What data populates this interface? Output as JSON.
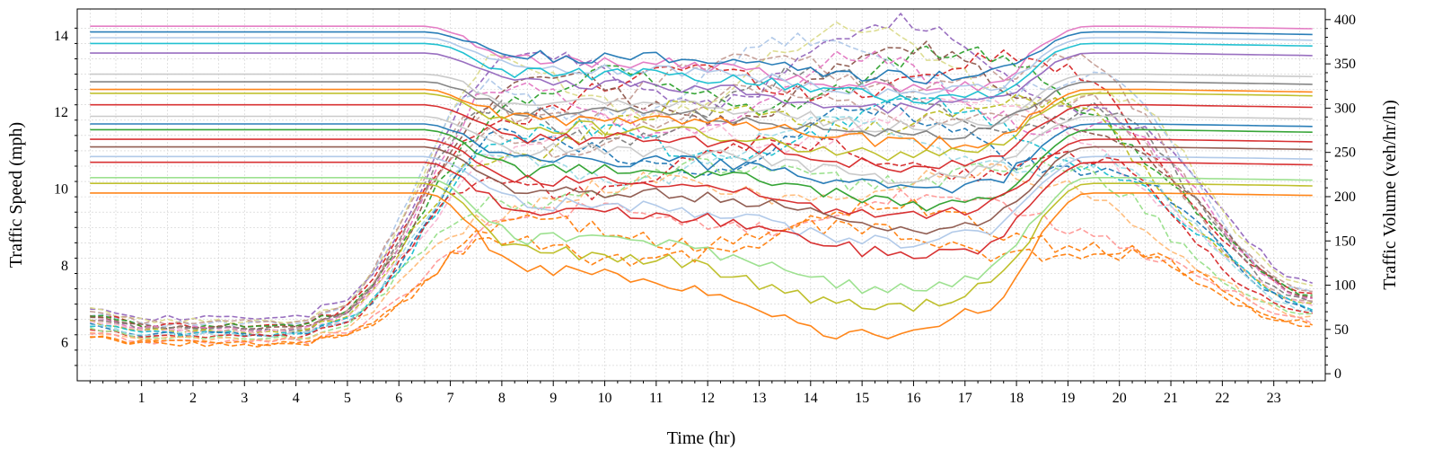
{
  "chart_data": {
    "type": "line",
    "title": "",
    "xlabel": "Time (hr)",
    "ylabel": "Traffic Speed (mph)",
    "y2label": "Traffic Volume (veh/hr/ln)",
    "xlim": [
      -0.25,
      24
    ],
    "ylim": [
      5,
      14.7
    ],
    "y2lim": [
      -8,
      412
    ],
    "xticks": [
      1,
      2,
      3,
      4,
      5,
      6,
      7,
      8,
      9,
      10,
      11,
      12,
      13,
      14,
      15,
      16,
      17,
      18,
      19,
      20,
      21,
      22,
      23
    ],
    "yticks": [
      6,
      8,
      10,
      12,
      14
    ],
    "y2ticks": [
      0,
      50,
      100,
      150,
      200,
      250,
      300,
      350,
      400
    ],
    "grid": true,
    "speed_series_style": "solid",
    "volume_series_style": "dashed",
    "palette": [
      "#1f77b4",
      "#ff7f0e",
      "#2ca02c",
      "#d62728",
      "#9467bd",
      "#8c564b",
      "#e377c2",
      "#7f7f7f",
      "#bcbd22",
      "#17becf",
      "#aec7e8",
      "#ffbb78",
      "#98df8a",
      "#ff9896",
      "#c5b0d5",
      "#c49c94",
      "#f7b6d2",
      "#c7c7c7",
      "#dbdb8d",
      "#9edae5"
    ],
    "speed_series": [
      {
        "free_flow": 14.25,
        "min": 12.6,
        "trough_time": 9.4,
        "color": "#e377c2"
      },
      {
        "free_flow": 14.1,
        "min": 12.9,
        "trough_time": 9.8,
        "color": "#1f77b4"
      },
      {
        "free_flow": 13.95,
        "min": 12.5,
        "trough_time": 9.5,
        "color": "#aec7e8"
      },
      {
        "free_flow": 13.8,
        "min": 12.4,
        "trough_time": 9.6,
        "color": "#17becf"
      },
      {
        "free_flow": 13.55,
        "min": 12.1,
        "trough_time": 9.3,
        "color": "#9467bd"
      },
      {
        "free_flow": 13.0,
        "min": 11.6,
        "trough_time": 9.7,
        "color": "#c7c7c7"
      },
      {
        "free_flow": 12.8,
        "min": 11.4,
        "trough_time": 9.2,
        "color": "#7f7f7f"
      },
      {
        "free_flow": 12.6,
        "min": 11.2,
        "trough_time": 9.9,
        "color": "#ff7f0e"
      },
      {
        "free_flow": 12.5,
        "min": 10.9,
        "trough_time": 9.1,
        "color": "#bcbd22"
      },
      {
        "free_flow": 12.2,
        "min": 10.6,
        "trough_time": 9.5,
        "color": "#d62728"
      },
      {
        "free_flow": 11.9,
        "min": 10.3,
        "trough_time": 9.4,
        "color": "#c7c7c7"
      },
      {
        "free_flow": 11.7,
        "min": 10.0,
        "trough_time": 9.6,
        "color": "#1f77b4"
      },
      {
        "free_flow": 11.55,
        "min": 9.6,
        "trough_time": 9.8,
        "color": "#2ca02c"
      },
      {
        "free_flow": 11.3,
        "min": 9.3,
        "trough_time": 9.3,
        "color": "#d62728"
      },
      {
        "free_flow": 11.1,
        "min": 9.0,
        "trough_time": 9.7,
        "color": "#8c564b"
      },
      {
        "free_flow": 10.85,
        "min": 8.6,
        "trough_time": 9.2,
        "color": "#aec7e8"
      },
      {
        "free_flow": 10.7,
        "min": 8.3,
        "trough_time": 9.5,
        "color": "#d62728"
      },
      {
        "free_flow": 10.3,
        "min": 7.4,
        "trough_time": 9.0,
        "color": "#98df8a"
      },
      {
        "free_flow": 10.15,
        "min": 6.9,
        "trough_time": 8.8,
        "color": "#bcbd22"
      },
      {
        "free_flow": 9.9,
        "min": 6.2,
        "trough_time": 8.6,
        "color": "#ff7f0e"
      }
    ],
    "volume_series": [
      {
        "night": 76,
        "peak": 400,
        "color": "#9467bd"
      },
      {
        "night": 72,
        "peak": 395,
        "color": "#dbdb8d"
      },
      {
        "night": 68,
        "peak": 390,
        "color": "#aec7e8"
      },
      {
        "night": 70,
        "peak": 385,
        "color": "#c49c94"
      },
      {
        "night": 66,
        "peak": 380,
        "color": "#d62728"
      },
      {
        "night": 65,
        "peak": 375,
        "color": "#2ca02c"
      },
      {
        "night": 63,
        "peak": 370,
        "color": "#8c564b"
      },
      {
        "night": 62,
        "peak": 360,
        "color": "#e377c2"
      },
      {
        "night": 61,
        "peak": 350,
        "color": "#7f7f7f"
      },
      {
        "night": 60,
        "peak": 340,
        "color": "#c49c94"
      },
      {
        "night": 58,
        "peak": 330,
        "color": "#bcbd22"
      },
      {
        "night": 57,
        "peak": 320,
        "color": "#f7b6d2"
      },
      {
        "night": 55,
        "peak": 310,
        "color": "#17becf"
      },
      {
        "night": 54,
        "peak": 300,
        "color": "#1f77b4"
      },
      {
        "night": 53,
        "peak": 290,
        "color": "#9edae5"
      },
      {
        "night": 50,
        "peak": 275,
        "color": "#d62728"
      },
      {
        "night": 49,
        "peak": 255,
        "color": "#98df8a"
      },
      {
        "night": 47,
        "peak": 240,
        "color": "#ffbb78"
      },
      {
        "night": 44,
        "peak": 205,
        "color": "#ff9896"
      },
      {
        "night": 42,
        "peak": 190,
        "color": "#ff7f0e"
      },
      {
        "night": 40,
        "peak": 170,
        "color": "#ff7f0e"
      }
    ]
  }
}
